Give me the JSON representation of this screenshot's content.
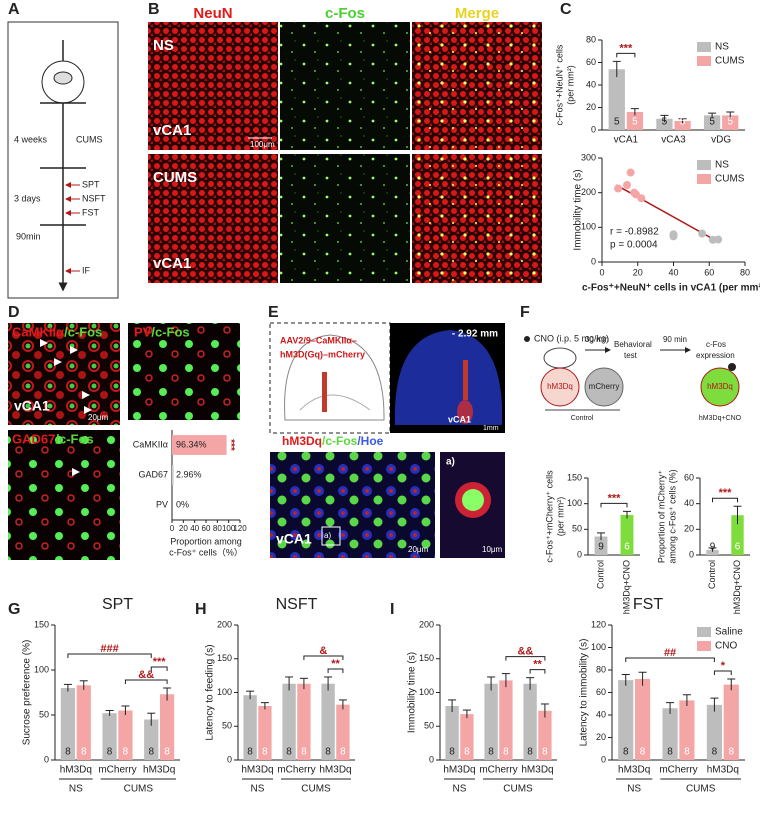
{
  "panel_labels": [
    "A",
    "B",
    "C",
    "D",
    "E",
    "F",
    "G",
    "H",
    "I"
  ],
  "panel_a": {
    "phases": [
      "4 weeks",
      "CUMS",
      "3 days",
      "90min"
    ],
    "tests": [
      "SPT",
      "NSFT",
      "FST",
      "IF"
    ]
  },
  "panel_b": {
    "columns": [
      "NeuN",
      "c-Fos",
      "Merge"
    ],
    "rows": [
      "NS",
      "CUMS"
    ],
    "region": "vCA1",
    "scale": "100μm"
  },
  "panel_d": {
    "images": [
      {
        "marker": "CaMKIIα",
        "stain": "/c-Fos"
      },
      {
        "marker": "PV",
        "stain": "/c-Fos"
      },
      {
        "marker": "GAD67",
        "stain": "/c-Fos"
      }
    ],
    "region": "vCA1",
    "scale": "20μm"
  },
  "panel_e": {
    "virus": [
      "AAV2/9–CaMKIIα–",
      "hM3D(Gq)–mCherry"
    ],
    "coordinate": "- 2.92 mm",
    "region": "vCA1",
    "scale_atlas": "1mm",
    "stains": [
      "hM3Dq",
      "/c-Fos",
      "/Hoe"
    ],
    "scale_image": "20μm",
    "inset": "a)",
    "scale_inset": "10μm"
  },
  "panel_f": {
    "treatment": "CNO (i.p. 5 mg/kg)",
    "delay1": "30 min",
    "test": [
      "Behavioral",
      "test"
    ],
    "delay2": "90 min",
    "readout": [
      "c-Fos",
      "expression"
    ],
    "cells": [
      "hM3Dq",
      "mCherry",
      "hM3Dq"
    ],
    "groups": [
      "Control",
      "hM3Dq+CNO"
    ]
  },
  "chart_data": [
    {
      "type": "bar",
      "y_label": "c-Fos⁺+NeuN⁺ cells",
      "y_unit": "(per mm²)",
      "categories": [
        "vCA1",
        "vCA3",
        "vDG"
      ],
      "series": [
        {
          "name": "NS",
          "color": "#bdbdbd",
          "values": [
            54,
            10,
            13
          ],
          "errors": [
            7,
            3,
            2
          ],
          "n": [
            5,
            5,
            5
          ]
        },
        {
          "name": "CUMS",
          "color": "#f4a6a6",
          "values": [
            16,
            8,
            13
          ],
          "errors": [
            3,
            2,
            3
          ],
          "n": [
            5,
            5,
            5
          ]
        }
      ],
      "ylim": [
        0,
        80
      ],
      "yticks": [
        0,
        20,
        40,
        60,
        80
      ],
      "legend": "top-right",
      "significance": [
        {
          "text": "***",
          "bars": [
            [
              0,
              0
            ],
            [
              1,
              0
            ]
          ]
        }
      ]
    },
    {
      "type": "scatter",
      "y_label": "Immobility time (s)",
      "x_label": "c-Fos⁺+NeuN⁺ cells in vCA1 (per mm²)",
      "series": [
        {
          "name": "NS",
          "color": "#bdbdbd",
          "x": [
            40,
            40,
            56,
            62,
            65
          ],
          "values": [
            80,
            74,
            82,
            64,
            65
          ]
        },
        {
          "name": "CUMS",
          "color": "#f4a6a6",
          "x": [
            9,
            14,
            16,
            19,
            22,
            18
          ],
          "values": [
            212,
            222,
            258,
            195,
            184,
            200
          ]
        }
      ],
      "fit": {
        "color": "#b01818",
        "x": [
          8,
          65
        ],
        "y": [
          222,
          58
        ]
      },
      "annotations": [
        "r = -0.8982",
        "p = 0.0004"
      ],
      "xlim": [
        0,
        80
      ],
      "xticks": [
        0,
        20,
        40,
        60,
        80
      ],
      "ylim": [
        0,
        300
      ],
      "yticks": [
        0,
        100,
        200,
        300
      ],
      "legend": "top-right"
    },
    {
      "type": "bar",
      "orientation": "horizontal",
      "categories": [
        "CaMKIIα",
        "GAD67",
        "PV"
      ],
      "values": [
        96.34,
        2.96,
        0
      ],
      "value_labels": [
        "96.34%",
        "2.96%",
        "0%"
      ],
      "colors": [
        "#f4a6a6",
        "#cccccc",
        "#cccccc"
      ],
      "xlim": [
        0,
        120
      ],
      "xticks": [
        0,
        20,
        40,
        60,
        80,
        100,
        120
      ],
      "x_label": "Proportion among",
      "x_unit": "c-Fos⁺ cells（%）",
      "significance_label": "***"
    },
    {
      "type": "bar",
      "y_label": "c-Fos⁺+mCherry⁺ cells",
      "y_unit": "(per mm²)",
      "categories": [
        "Control",
        "hM3Dq+CNO"
      ],
      "series": [
        {
          "colors": [
            "#bdbdbd",
            "#7edc3c"
          ],
          "values": [
            36,
            78
          ],
          "errors": [
            7,
            7
          ],
          "n": [
            9,
            6
          ]
        }
      ],
      "ylim": [
        0,
        150
      ],
      "yticks": [
        0,
        50,
        100,
        150
      ],
      "rotated_labels": true,
      "significance": [
        {
          "text": "***",
          "bars": [
            [
              0,
              0
            ],
            [
              0,
              1
            ]
          ]
        }
      ]
    },
    {
      "type": "bar",
      "y_label": "Proportion of mCherry⁺",
      "y_unit": "among c-Fos⁺ cells (%)",
      "categories": [
        "Control",
        "hM3Dq+CNO"
      ],
      "series": [
        {
          "colors": [
            "#bdbdbd",
            "#7edc3c"
          ],
          "values": [
            4,
            31
          ],
          "errors": [
            1.5,
            7
          ],
          "n": [
            9,
            6
          ]
        }
      ],
      "ylim": [
        0,
        60
      ],
      "yticks": [
        0,
        20,
        40,
        60
      ],
      "rotated_labels": true,
      "significance": [
        {
          "text": "***",
          "bars": [
            [
              0,
              0
            ],
            [
              0,
              1
            ]
          ]
        }
      ]
    },
    {
      "type": "bar",
      "title": "SPT",
      "y_label": "Sucrose preference (%)",
      "categories": [
        "hM3Dq",
        "mCherry",
        "hM3Dq"
      ],
      "groups": [
        {
          "name": "NS",
          "categories": [
            0
          ]
        },
        {
          "name": "CUMS",
          "categories": [
            1,
            2
          ]
        }
      ],
      "series": [
        {
          "name": "Saline",
          "color": "#bdbdbd",
          "values": [
            80,
            52,
            45
          ],
          "errors": [
            4,
            3,
            7
          ],
          "n": [
            8,
            8,
            8
          ]
        },
        {
          "name": "CNO",
          "color": "#f4a6a6",
          "values": [
            83,
            55,
            73
          ],
          "errors": [
            5,
            5,
            7
          ],
          "n": [
            8,
            8,
            8
          ]
        }
      ],
      "ylim": [
        0,
        150
      ],
      "yticks": [
        0,
        50,
        100,
        150
      ],
      "significance": [
        {
          "text": "&&",
          "bars": [
            [
              1,
              1
            ],
            [
              1,
              2
            ]
          ]
        },
        {
          "text": "***",
          "bars": [
            [
              0,
              2
            ],
            [
              1,
              2
            ]
          ]
        },
        {
          "text": "###",
          "bars": [
            [
              0,
              0
            ],
            [
              0,
              2
            ]
          ]
        }
      ]
    },
    {
      "type": "bar",
      "title": "NSFT",
      "y_label": "Latency to feeding (s)",
      "categories": [
        "hM3Dq",
        "mCherry",
        "hM3Dq"
      ],
      "groups": [
        {
          "name": "NS",
          "categories": [
            0
          ]
        },
        {
          "name": "CUMS",
          "categories": [
            1,
            2
          ]
        }
      ],
      "series": [
        {
          "name": "Saline",
          "color": "#bdbdbd",
          "values": [
            96,
            113,
            113
          ],
          "errors": [
            6,
            10,
            10
          ],
          "n": [
            8,
            8,
            8
          ]
        },
        {
          "name": "CNO",
          "color": "#f4a6a6",
          "values": [
            80,
            113,
            82
          ],
          "errors": [
            5,
            8,
            7
          ],
          "n": [
            8,
            8,
            8
          ]
        }
      ],
      "ylim": [
        0,
        200
      ],
      "yticks": [
        0,
        50,
        100,
        150,
        200
      ],
      "significance": [
        {
          "text": "**",
          "bars": [
            [
              0,
              2
            ],
            [
              1,
              2
            ]
          ]
        },
        {
          "text": "&",
          "bars": [
            [
              1,
              1
            ],
            [
              1,
              2
            ]
          ]
        }
      ]
    },
    {
      "type": "bar",
      "title": "FST",
      "y_label": "Immobility time (s)",
      "categories": [
        "hM3Dq",
        "mCherry",
        "hM3Dq"
      ],
      "groups": [
        {
          "name": "NS",
          "categories": [
            0
          ]
        },
        {
          "name": "CUMS",
          "categories": [
            1,
            2
          ]
        }
      ],
      "series": [
        {
          "name": "Saline",
          "color": "#bdbdbd",
          "values": [
            80,
            113,
            113
          ],
          "errors": [
            9,
            10,
            9
          ],
          "n": [
            8,
            8,
            8
          ]
        },
        {
          "name": "CNO",
          "color": "#f4a6a6",
          "values": [
            68,
            118,
            73
          ],
          "errors": [
            6,
            10,
            10
          ],
          "n": [
            8,
            8,
            8
          ]
        }
      ],
      "ylim": [
        0,
        200
      ],
      "yticks": [
        0,
        50,
        100,
        150,
        200
      ],
      "significance": [
        {
          "text": "**",
          "bars": [
            [
              0,
              2
            ],
            [
              1,
              2
            ]
          ]
        },
        {
          "text": "&&",
          "bars": [
            [
              1,
              1
            ],
            [
              1,
              2
            ]
          ]
        }
      ]
    },
    {
      "type": "bar",
      "y_label": "Latency to immobility (s)",
      "categories": [
        "hM3Dq",
        "mCherry",
        "hM3Dq"
      ],
      "groups": [
        {
          "name": "NS",
          "categories": [
            0
          ]
        },
        {
          "name": "CUMS",
          "categories": [
            1,
            2
          ]
        }
      ],
      "series": [
        {
          "name": "Saline",
          "color": "#bdbdbd",
          "values": [
            71,
            46,
            49
          ],
          "errors": [
            5,
            5,
            6
          ],
          "n": [
            8,
            8,
            8
          ]
        },
        {
          "name": "CNO",
          "color": "#f4a6a6",
          "values": [
            72,
            53,
            67
          ],
          "errors": [
            6,
            5,
            5
          ],
          "n": [
            8,
            8,
            8
          ]
        }
      ],
      "ylim": [
        0,
        120
      ],
      "yticks": [
        0,
        20,
        40,
        60,
        80,
        100,
        120
      ],
      "legend": "top-right",
      "significance": [
        {
          "text": "*",
          "bars": [
            [
              0,
              2
            ],
            [
              1,
              2
            ]
          ]
        },
        {
          "text": "##",
          "bars": [
            [
              0,
              0
            ],
            [
              0,
              2
            ]
          ]
        }
      ]
    }
  ]
}
